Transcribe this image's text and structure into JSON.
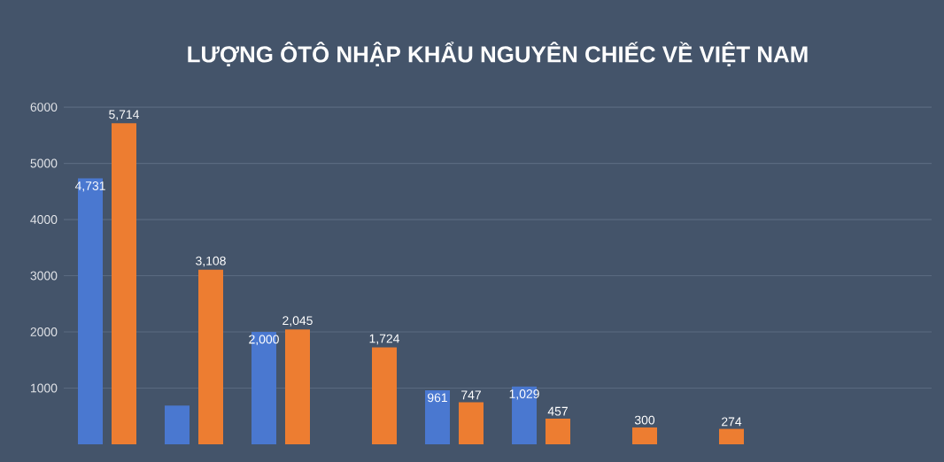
{
  "chart_data": {
    "type": "bar",
    "title": "LƯỢNG ÔTÔ NHẬP KHẨU NGUYÊN CHIẾC VỀ VIỆT NAM",
    "categories": [
      null,
      null,
      null,
      null,
      null,
      null,
      null,
      null,
      null,
      null
    ],
    "series": [
      {
        "color": "#4a78d0",
        "values": [
          4731,
          690,
          2000,
          null,
          961,
          1029,
          null,
          null,
          null,
          null
        ],
        "value_labels": [
          "4,731",
          null,
          "2,000",
          null,
          "961",
          "1,029",
          null,
          null,
          null,
          null
        ]
      },
      {
        "color": "#ed7d31",
        "values": [
          5714,
          3108,
          2045,
          1724,
          747,
          457,
          300,
          274,
          null,
          null
        ],
        "value_labels": [
          "5,714",
          "3,108",
          "2,045",
          "1,724",
          "747",
          "457",
          "300",
          "274",
          null,
          null
        ]
      }
    ],
    "ylim": [
      0,
      6000
    ],
    "yticks": [
      1000,
      2000,
      3000,
      4000,
      5000,
      6000
    ],
    "grid": "y"
  }
}
